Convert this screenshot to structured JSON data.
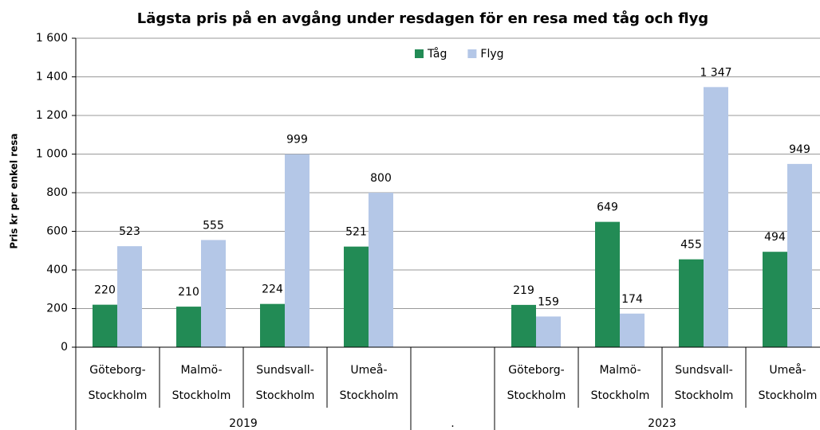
{
  "chart_data": {
    "type": "bar",
    "title": "Lägsta pris på en avgång under resdagen för en resa med tåg och flyg",
    "y_label": "Pris kr per enkel resa",
    "categories": [
      [
        "Göteborg-",
        "Stockholm"
      ],
      [
        "Malmö-",
        "Stockholm"
      ],
      [
        "Sundsvall-",
        "Stockholm"
      ],
      [
        "Umeå-",
        "Stockholm"
      ],
      null,
      [
        "Göteborg-",
        "Stockholm"
      ],
      [
        "Malmö-",
        "Stockholm"
      ],
      [
        "Sundsvall-",
        "Stockholm"
      ],
      [
        "Umeå-",
        "Stockholm"
      ]
    ],
    "groups": [
      "2019",
      ".",
      "2023"
    ],
    "series": [
      {
        "name": "Tåg",
        "color": "#228b55",
        "values": [
          220,
          210,
          224,
          521,
          null,
          219,
          649,
          455,
          494
        ]
      },
      {
        "name": "Flyg",
        "color": "#b4c7e7",
        "values": [
          523,
          555,
          999,
          800,
          null,
          159,
          174,
          1347,
          949
        ],
        "value_labels": [
          "523",
          "555",
          "999",
          "800",
          null,
          "159",
          "174",
          "1 347",
          "949"
        ]
      }
    ],
    "ylim": [
      0,
      1600
    ],
    "yticks": [
      0,
      200,
      400,
      600,
      800,
      {
        "value": 1000,
        "label": "1 000"
      },
      {
        "value": 1200,
        "label": "1 200"
      },
      {
        "value": 1400,
        "label": "1 400"
      },
      {
        "value": 1600,
        "label": "1 600"
      }
    ],
    "grid": true,
    "legend": "top"
  }
}
